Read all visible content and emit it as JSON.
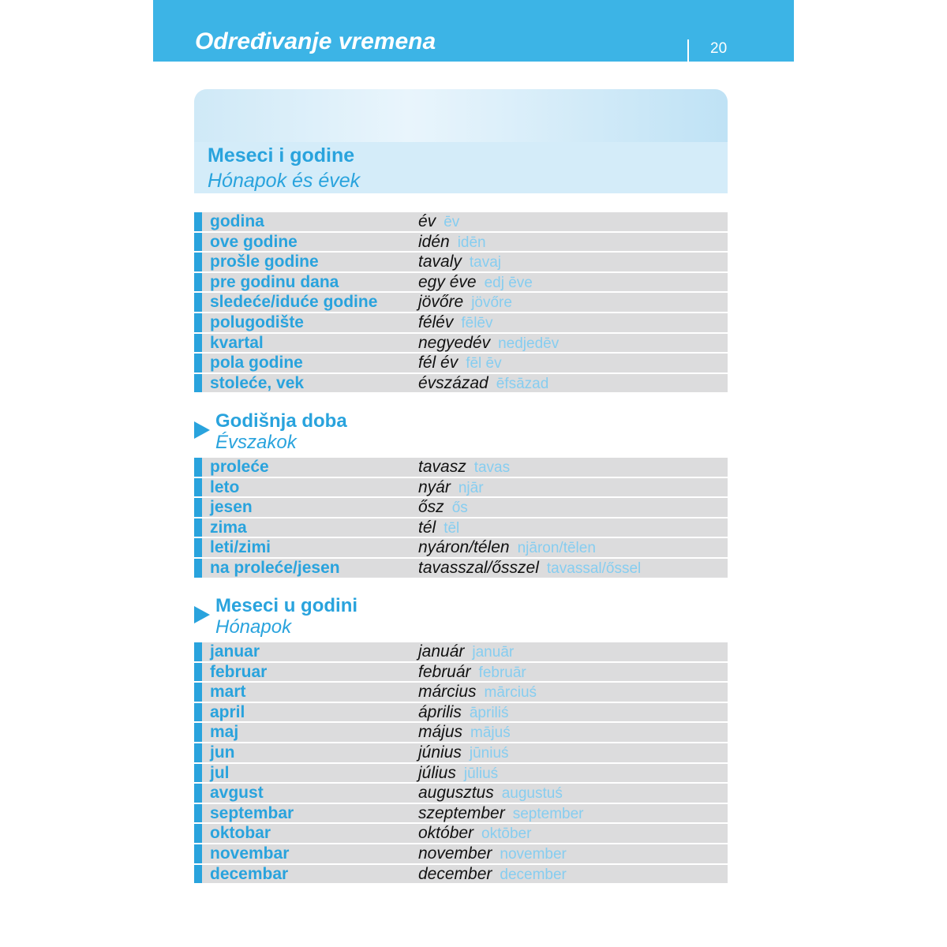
{
  "header": {
    "title": "Određivanje vremena",
    "page": "20"
  },
  "banner": {
    "title": "Meseci i godine",
    "subtitle": "Hónapok és évek"
  },
  "sections": [
    {
      "rows": [
        [
          "godina",
          "év",
          "ēv"
        ],
        [
          "ove godine",
          "idén",
          "idēn"
        ],
        [
          "prošle godine",
          "tavaly",
          "tavaj"
        ],
        [
          "pre godinu dana",
          "egy éve",
          "edj ēve"
        ],
        [
          "sledeće/iduće godine",
          "jövőre",
          "jövőre"
        ],
        [
          "polugodište",
          "félév",
          "fēlēv"
        ],
        [
          "kvartal",
          "negyedév",
          "nedjedēv"
        ],
        [
          "pola godine",
          "fél év",
          "fēl ēv"
        ],
        [
          "stoleće, vek",
          "évszázad",
          "ēfsāzad"
        ]
      ]
    },
    {
      "title": "Godišnja doba",
      "subtitle": "Évszakok",
      "rows": [
        [
          "proleće",
          "tavasz",
          "tavas"
        ],
        [
          "leto",
          "nyár",
          "njār"
        ],
        [
          "jesen",
          "ősz",
          "ős"
        ],
        [
          "zima",
          "tél",
          "tēl"
        ],
        [
          "leti/zimi",
          "nyáron/télen",
          "njāron/tēlen"
        ],
        [
          "na proleće/jesen",
          "tavasszal/ősszel",
          "tavassal/őssel"
        ]
      ]
    },
    {
      "title": "Meseci u godini",
      "subtitle": "Hónapok",
      "rows": [
        [
          "januar",
          "január",
          "januār"
        ],
        [
          "februar",
          "február",
          "februār"
        ],
        [
          "mart",
          "március",
          "mārciuś"
        ],
        [
          "april",
          "április",
          "āpriliś"
        ],
        [
          "maj",
          "május",
          "mājuś"
        ],
        [
          "jun",
          "június",
          "jūniuś"
        ],
        [
          "jul",
          "július",
          "jūliuś"
        ],
        [
          "avgust",
          "augusztus",
          "augustuś"
        ],
        [
          "septembar",
          "szeptember",
          "september"
        ],
        [
          "oktobar",
          "október",
          "oktōber"
        ],
        [
          "novembar",
          "november",
          "november"
        ],
        [
          "decembar",
          "december",
          "december"
        ]
      ]
    }
  ]
}
